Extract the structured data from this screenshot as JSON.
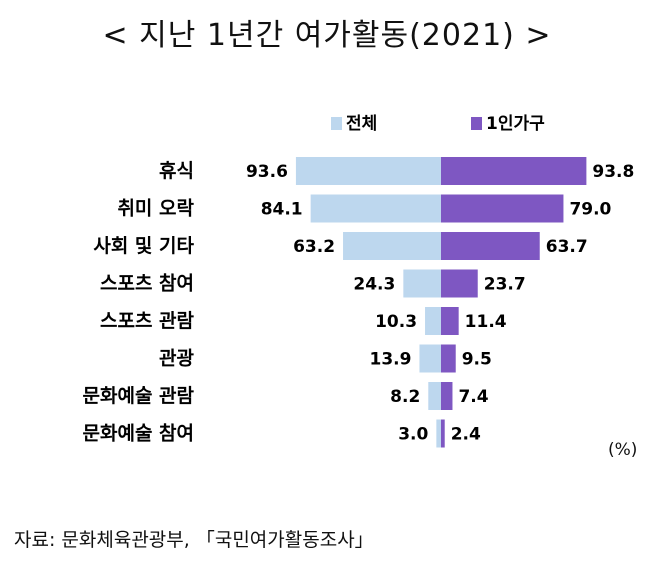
{
  "title": "< 지난 1년간 여가활동(2021) >",
  "unit": "(%)",
  "source": "자료:  문화체육관광부, 「국민여가활동조사」",
  "colors": {
    "all": "#bdd7ee",
    "single": "#7e57c2"
  },
  "chart_data": {
    "type": "bar",
    "orientation": "horizontal-butterfly",
    "categories": [
      "휴식",
      "취미 오락",
      "사회 및 기타",
      "스포츠 참여",
      "스포츠 관람",
      "관광",
      "문화예술 관람",
      "문화예술 참여"
    ],
    "series": [
      {
        "name": "전체",
        "values": [
          93.6,
          84.1,
          63.2,
          24.3,
          10.3,
          13.9,
          8.2,
          3.0
        ]
      },
      {
        "name": "1인가구",
        "values": [
          93.8,
          79.0,
          63.7,
          23.7,
          11.4,
          9.5,
          7.4,
          2.4
        ]
      }
    ],
    "value_labels": [
      [
        "93.6",
        "84.1",
        "63.2",
        "24.3",
        "10.3",
        "13.9",
        "8.2",
        "3.0"
      ],
      [
        "93.8",
        "79.0",
        "63.7",
        "23.7",
        "11.4",
        "9.5",
        "7.4",
        "2.4"
      ]
    ],
    "legend_position": "top",
    "grid": false
  }
}
